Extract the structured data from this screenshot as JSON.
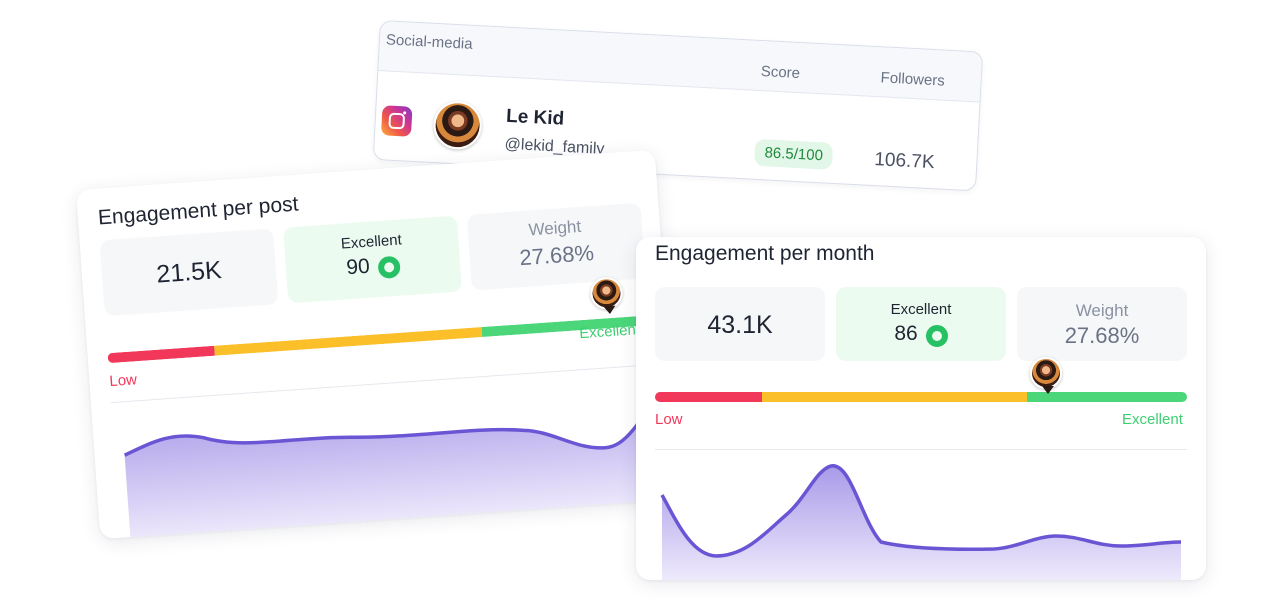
{
  "social_table": {
    "headers": {
      "platform": "Social-media",
      "score": "Score",
      "followers": "Followers"
    },
    "row": {
      "platform_icon": "instagram-icon",
      "name": "Le Kid",
      "handle": "@lekid_family",
      "score": "86.5/100",
      "followers": "106.7K"
    }
  },
  "engagement_post": {
    "title": "Engagement per post",
    "value": "21.5K",
    "rating_label": "Excellent",
    "rating_value": "90",
    "weight_label": "Weight",
    "weight_value": "27.68%",
    "scale_low": "Low",
    "scale_high": "Excellent"
  },
  "engagement_month": {
    "title": "Engagement per month",
    "value": "43.1K",
    "rating_label": "Excellent",
    "rating_value": "86",
    "weight_label": "Weight",
    "weight_value": "27.68%",
    "scale_low": "Low",
    "scale_high": "Excellent"
  },
  "colors": {
    "low": "#f2385a",
    "mid": "#fbbf2a",
    "high": "#4bd67a",
    "line": "#6a56d4",
    "fill": "#c9c1f0"
  }
}
